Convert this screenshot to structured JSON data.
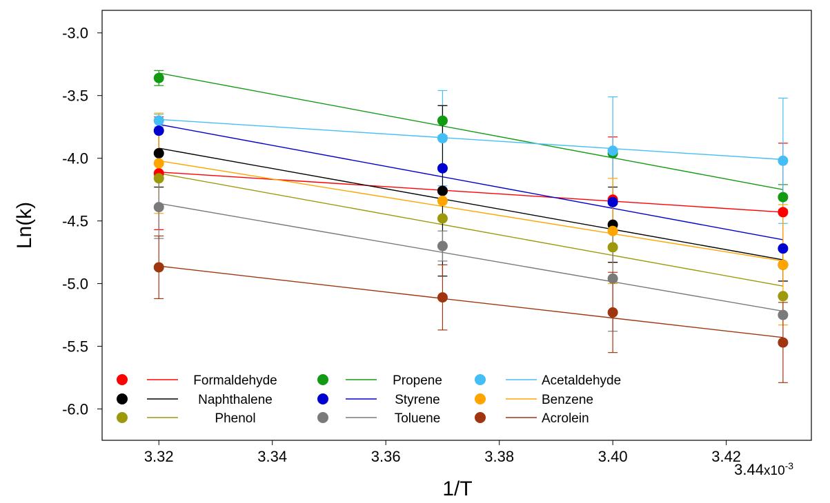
{
  "chart_data": {
    "type": "scatter",
    "title": "",
    "xlabel": "1/T",
    "ylabel": "Ln(k)",
    "x_exponent_label": "x10",
    "x_exponent_power": "-3",
    "xlim": [
      3.31,
      3.435
    ],
    "ylim": [
      -6.25,
      -2.82
    ],
    "x_ticks": [
      3.32,
      3.34,
      3.36,
      3.38,
      3.4,
      3.42,
      3.44
    ],
    "x_tick_labels": [
      "3.32",
      "3.34",
      "3.36",
      "3.38",
      "3.40",
      "3.42",
      "3.44"
    ],
    "y_ticks": [
      -3.0,
      -3.5,
      -4.0,
      -4.5,
      -5.0,
      -5.5,
      -6.0
    ],
    "y_tick_labels": [
      "-3.0",
      "-3.5",
      "-4.0",
      "-4.5",
      "-5.0",
      "-5.5",
      "-6.0"
    ],
    "grid": false,
    "legend_position": "bottom-left",
    "x": [
      3.32,
      3.37,
      3.4,
      3.43
    ],
    "series": [
      {
        "name": "Formaldehyde",
        "color": "#ff0000",
        "values": [
          -4.12,
          -4.26,
          -4.33,
          -4.43
        ],
        "errors": [
          0.45,
          0.0,
          0.5,
          0.55
        ],
        "fit": [
          -4.11,
          -4.43
        ]
      },
      {
        "name": "Propene",
        "color": "#139a13",
        "values": [
          -3.36,
          -3.7,
          -3.96,
          -4.31
        ],
        "errors": [
          0.06,
          0.12,
          0.0,
          0.1
        ],
        "fit": [
          -3.32,
          -4.25
        ]
      },
      {
        "name": "Acetaldehyde",
        "color": "#45bef5",
        "values": [
          -3.7,
          -3.84,
          -3.94,
          -4.02
        ],
        "errors": [
          0.05,
          0.38,
          0.43,
          0.5
        ],
        "fit": [
          -3.69,
          -4.01
        ]
      },
      {
        "name": "Naphthalene",
        "color": "#000000",
        "values": [
          -3.96,
          -4.26,
          -4.53,
          -4.85
        ],
        "errors": [
          0.27,
          0.68,
          0.3,
          0.13
        ],
        "fit": [
          -3.92,
          -4.81
        ]
      },
      {
        "name": "Styrene",
        "color": "#0000d0",
        "values": [
          -3.78,
          -4.08,
          -4.35,
          -4.72
        ],
        "errors": [
          0.0,
          0.0,
          0.0,
          0.0
        ],
        "fit": [
          -3.73,
          -4.65
        ]
      },
      {
        "name": "Benzene",
        "color": "#ffa500",
        "values": [
          -4.04,
          -4.34,
          -4.58,
          -4.85
        ],
        "errors": [
          0.4,
          0.0,
          0.42,
          0.48
        ],
        "fit": [
          -4.02,
          -4.82
        ]
      },
      {
        "name": "Phenol",
        "color": "#9c9a0c",
        "values": [
          -4.16,
          -4.48,
          -4.71,
          -5.1
        ],
        "errors": [
          0.0,
          0.0,
          0.0,
          0.0
        ],
        "fit": [
          -4.12,
          -5.02
        ]
      },
      {
        "name": "Toluene",
        "color": "#7a7a7a",
        "values": [
          -4.39,
          -4.7,
          -4.96,
          -5.25
        ],
        "errors": [
          0.25,
          0.12,
          0.42,
          0.0
        ],
        "fit": [
          -4.36,
          -5.22
        ]
      },
      {
        "name": "Acrolein",
        "color": "#a0360f",
        "values": [
          -4.87,
          -5.11,
          -5.23,
          -5.47
        ],
        "errors": [
          0.25,
          0.26,
          0.32,
          0.32
        ],
        "fit": [
          -4.86,
          -5.43
        ]
      }
    ]
  }
}
